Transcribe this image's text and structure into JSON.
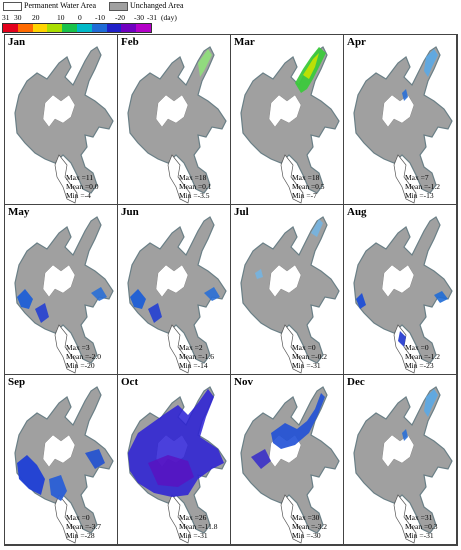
{
  "legend": {
    "permanent_label": "Permanent Water Area",
    "unchanged_label": "Unchanged Area",
    "scale_labels": [
      "31",
      "30",
      "20",
      "10",
      "0",
      "-10",
      "-20",
      "-30",
      "-31",
      "(day)"
    ],
    "scale_colors": [
      "#e3001b",
      "#ff6a00",
      "#ffd400",
      "#aade00",
      "#19c24b",
      "#00b9c8",
      "#1f6bd6",
      "#2020c8",
      "#7000c0",
      "#b400c8"
    ],
    "unchanged_color": "#a0a0a0"
  },
  "panels": [
    {
      "month": "Jan",
      "max": "Max =11",
      "mean": "Mean =0.0",
      "min": "Min =-4",
      "overlay": "none"
    },
    {
      "month": "Feb",
      "max": "Max =18",
      "mean": "Mean =0.1",
      "min": "Min =-3.5",
      "overlay": "light-green-north"
    },
    {
      "month": "Mar",
      "max": "Max =18",
      "mean": "Mean =0.5",
      "min": "Min =-7",
      "overlay": "green-north"
    },
    {
      "month": "Apr",
      "max": "Max =7",
      "mean": "Mean =-1.2",
      "min": "Min =-13",
      "overlay": "light-blue-north"
    },
    {
      "month": "May",
      "max": "Max =3",
      "mean": "Mean =-2.0",
      "min": "Min =-20",
      "overlay": "blue-west"
    },
    {
      "month": "Jun",
      "max": "Max =2",
      "mean": "Mean =-1.6",
      "min": "Min =-14",
      "overlay": "blue-west"
    },
    {
      "month": "Jul",
      "max": "Max =0",
      "mean": "Mean =-0.2",
      "min": "Min =-31",
      "overlay": "light-blue-edges"
    },
    {
      "month": "Aug",
      "max": "Max =0",
      "mean": "Mean =-1.2",
      "min": "Min =-23",
      "overlay": "blue-south"
    },
    {
      "month": "Sep",
      "max": "Max =0",
      "mean": "Mean =-3.7",
      "min": "Min =-28",
      "overlay": "blue-south-heavy"
    },
    {
      "month": "Oct",
      "max": "Max =26",
      "mean": "Mean =-11.8",
      "min": "Min =-31",
      "overlay": "purple-all"
    },
    {
      "month": "Nov",
      "max": "Max =30",
      "mean": "Mean =-3.2",
      "min": "Min =-30",
      "overlay": "blue-center"
    },
    {
      "month": "Dec",
      "max": "Max =31",
      "mean": "Mean =0.3",
      "min": "Min =-31",
      "overlay": "light-blue-north"
    }
  ]
}
